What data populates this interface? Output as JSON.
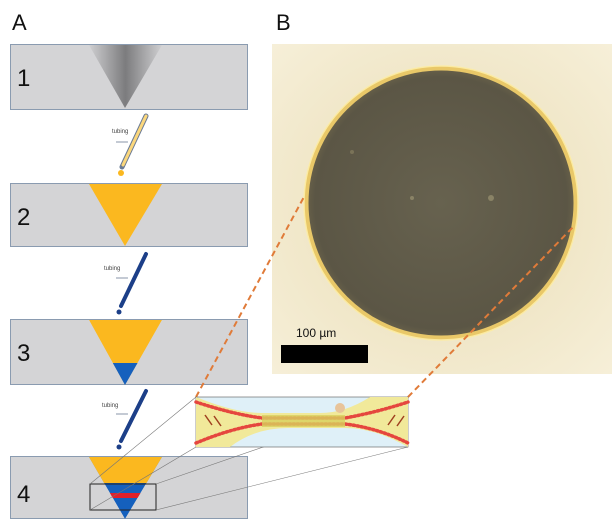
{
  "panels": {
    "a": "A",
    "b": "B"
  },
  "steps": [
    {
      "label": "1"
    },
    {
      "label": "2"
    },
    {
      "label": "3"
    },
    {
      "label": "4"
    }
  ],
  "tubing": {
    "label": "tubing"
  },
  "micrograph": {
    "scale_label": "100 µm"
  },
  "colors": {
    "well_gray": "#d4d4d6",
    "well_border": "#8a9bb0",
    "oil_yellow": "#fbb81f",
    "aqueous_blue": "#1560bd",
    "bilayer_red": "#e0202a",
    "leader_orange": "#e07b39",
    "photo_background": "#f1e8c6",
    "photo_disc": "#5e5a4a",
    "photo_rim": "#f0d070"
  }
}
